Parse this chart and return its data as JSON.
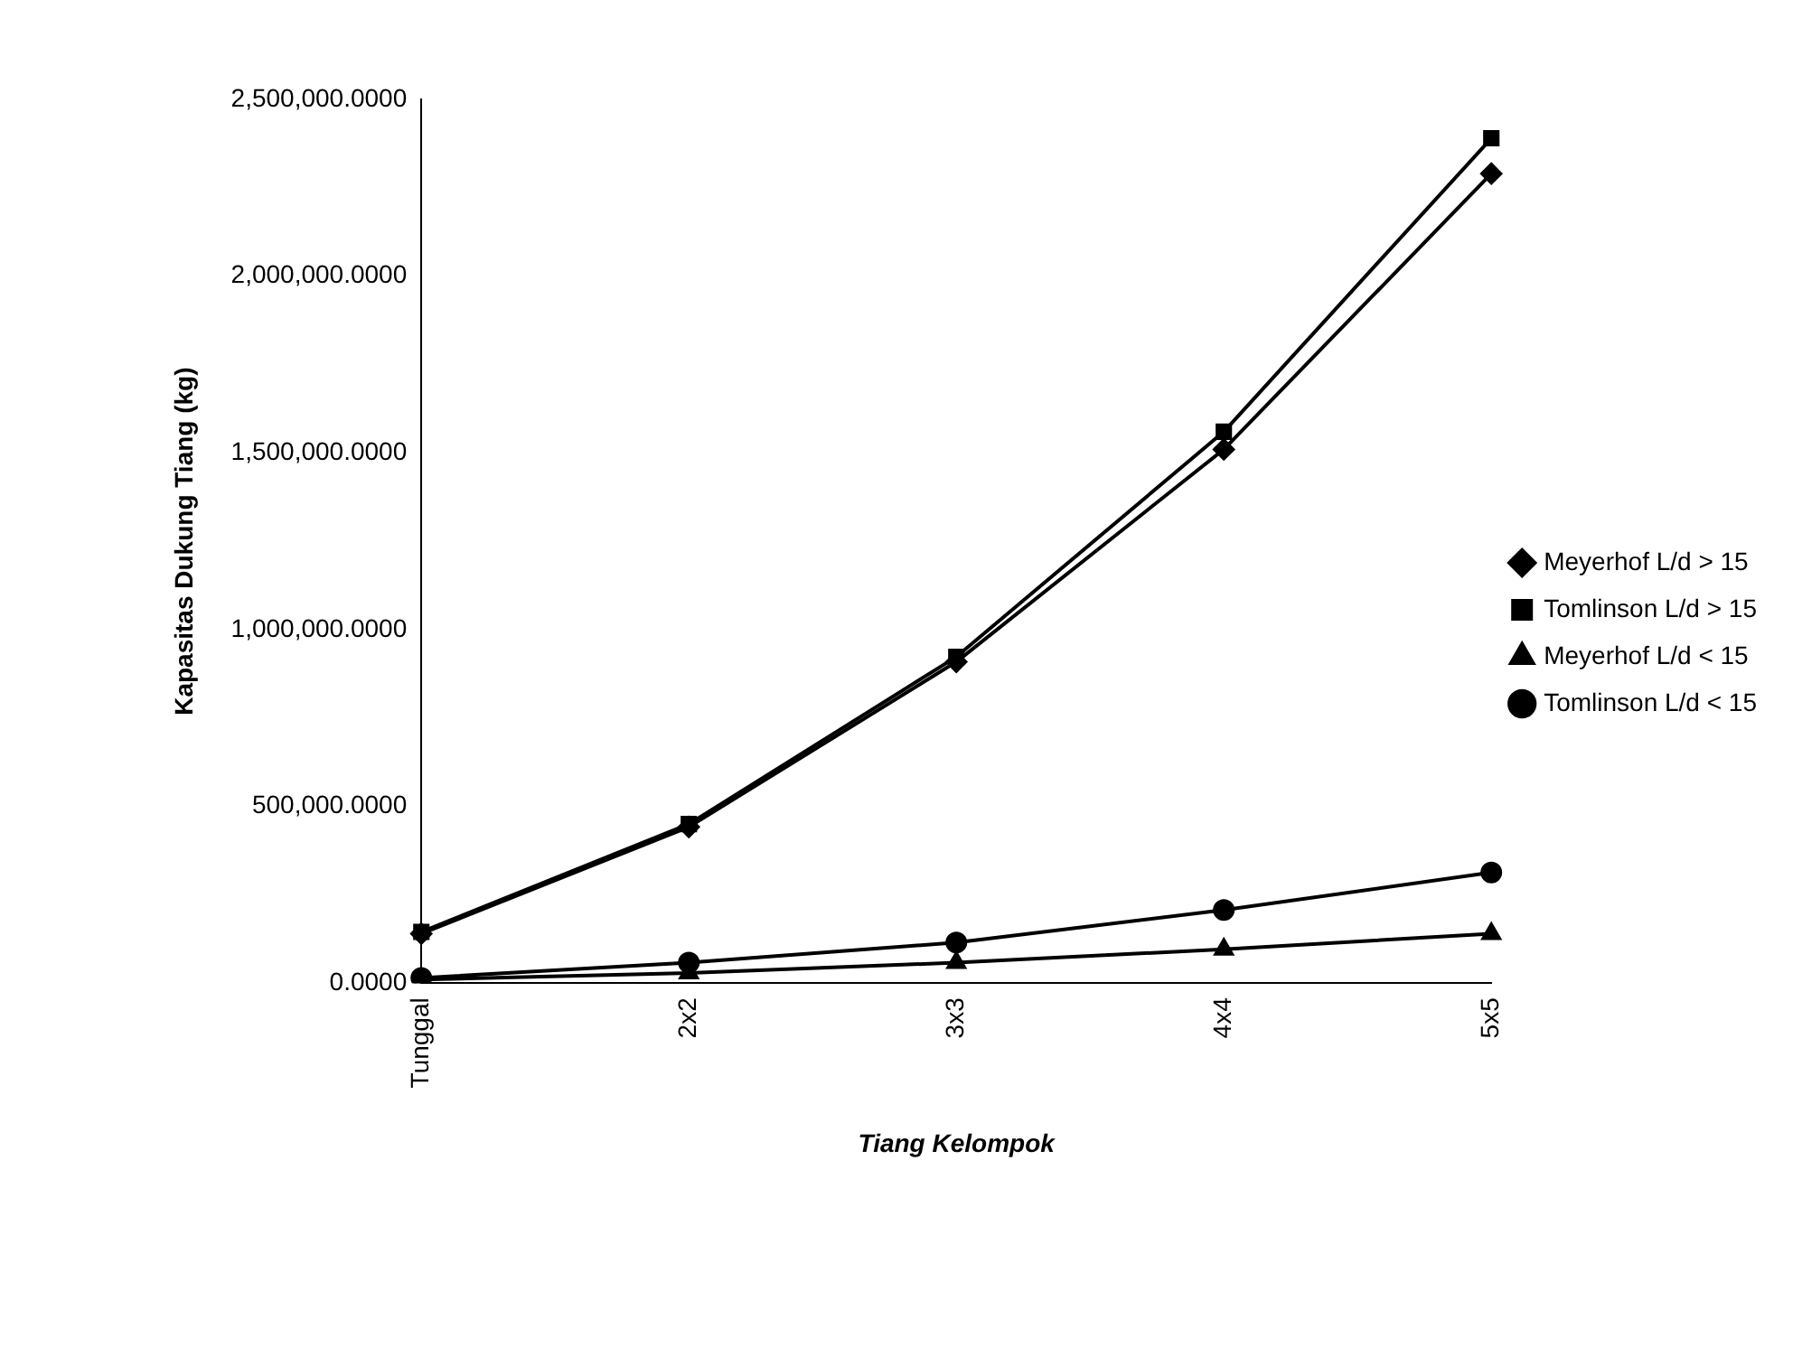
{
  "chart_data": {
    "type": "line",
    "xlabel": "Tiang Kelompok",
    "ylabel": "Kapasitas Dukung Tiang (kg)",
    "categories": [
      "Tunggal",
      "2x2",
      "3x3",
      "4x4",
      "5x5"
    ],
    "series": [
      {
        "name": "Meyerhof L/d > 15",
        "color": "#000000",
        "marker": "diamond",
        "values": [
          140000,
          442000,
          909000,
          1510000,
          2290000
        ]
      },
      {
        "name": "Tomlinson L/d > 15",
        "color": "#000000",
        "marker": "square",
        "values": [
          145000,
          450000,
          923000,
          1560000,
          2390000
        ]
      },
      {
        "name": "Meyerhof L/d < 15",
        "color": "#000000",
        "marker": "triangle",
        "values": [
          10000,
          29000,
          58000,
          96000,
          140000
        ]
      },
      {
        "name": "Tomlinson L/d < 15",
        "color": "#000000",
        "marker": "circle",
        "values": [
          15000,
          58000,
          115000,
          207000,
          313000
        ]
      }
    ],
    "ylim": [
      0,
      2500000
    ],
    "yticks": [
      {
        "value": 0,
        "label": "0.0000"
      },
      {
        "value": 500000,
        "label": "500,000.0000"
      },
      {
        "value": 1000000,
        "label": "1,000,000.0000"
      },
      {
        "value": 1500000,
        "label": "1,500,000.0000"
      },
      {
        "value": 2000000,
        "label": "2,000,000.0000"
      },
      {
        "value": 2500000,
        "label": "2,500,000.0000"
      }
    ],
    "legend": "right",
    "line_style": "solid"
  }
}
